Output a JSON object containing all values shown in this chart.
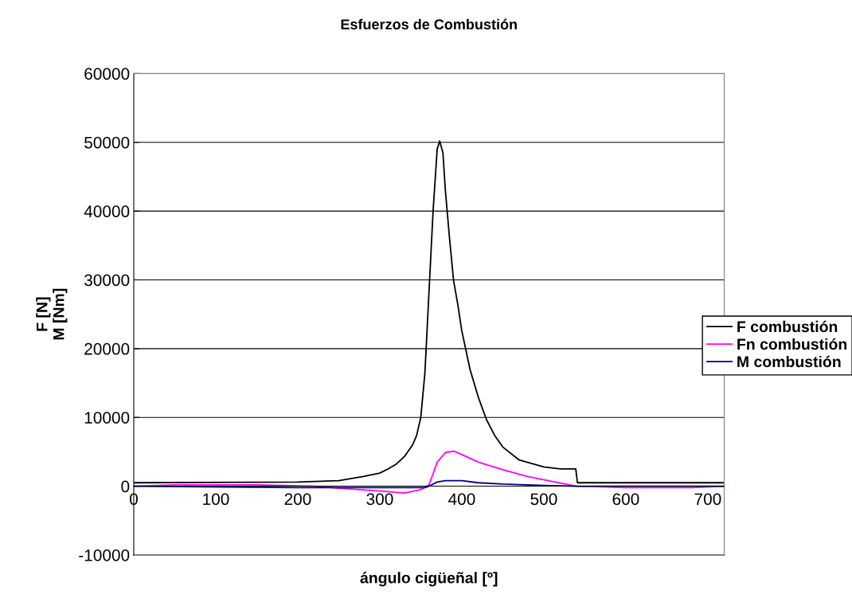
{
  "chart_data": {
    "type": "line",
    "title": "Esfuerzos de Combustión",
    "xlabel": "ángulo cigüeñal [º]",
    "ylabel": "F [N]\nM [Nm]",
    "xlim": [
      0,
      720
    ],
    "xticks": [
      0,
      100,
      200,
      300,
      400,
      500,
      600,
      700
    ],
    "ylim": [
      -10000,
      60000
    ],
    "yticks": [
      -10000,
      0,
      10000,
      20000,
      30000,
      40000,
      50000,
      60000
    ],
    "grid": "y",
    "legend": "right",
    "marker": "none",
    "line_style": "solid",
    "series": [
      {
        "name": "F combustión",
        "color": "#000000",
        "x": [
          0,
          200,
          250,
          280,
          300,
          310,
          320,
          330,
          340,
          345,
          350,
          355,
          360,
          365,
          370,
          373,
          377,
          380,
          385,
          390,
          395,
          400,
          405,
          410,
          420,
          430,
          440,
          450,
          470,
          500,
          520,
          539,
          541,
          720
        ],
        "values": [
          500,
          600,
          800,
          1400,
          1900,
          2500,
          3200,
          4300,
          6000,
          7400,
          10000,
          16400,
          28200,
          40000,
          49000,
          50200,
          48500,
          43000,
          36100,
          29900,
          26500,
          22600,
          19800,
          17000,
          13000,
          9700,
          7400,
          5700,
          3800,
          2800,
          2500,
          2500,
          500,
          500
        ]
      },
      {
        "name": "Fn combustión",
        "color": "#ff00ff",
        "x": [
          0,
          50,
          150,
          220,
          250,
          300,
          330,
          350,
          360,
          365,
          370,
          380,
          390,
          400,
          420,
          450,
          480,
          510,
          540,
          600,
          680,
          720
        ],
        "values": [
          0,
          200,
          200,
          0,
          -300,
          -700,
          -1000,
          -500,
          200,
          1800,
          3500,
          4900,
          5100,
          4600,
          3500,
          2400,
          1400,
          700,
          0,
          -200,
          -200,
          0
        ]
      },
      {
        "name": "M combustión",
        "color": "#000080",
        "x": [
          0,
          200,
          355,
          360,
          370,
          380,
          400,
          420,
          450,
          500,
          540,
          720
        ],
        "values": [
          0,
          -200,
          -200,
          0,
          600,
          800,
          800,
          500,
          300,
          100,
          0,
          0
        ]
      }
    ]
  }
}
